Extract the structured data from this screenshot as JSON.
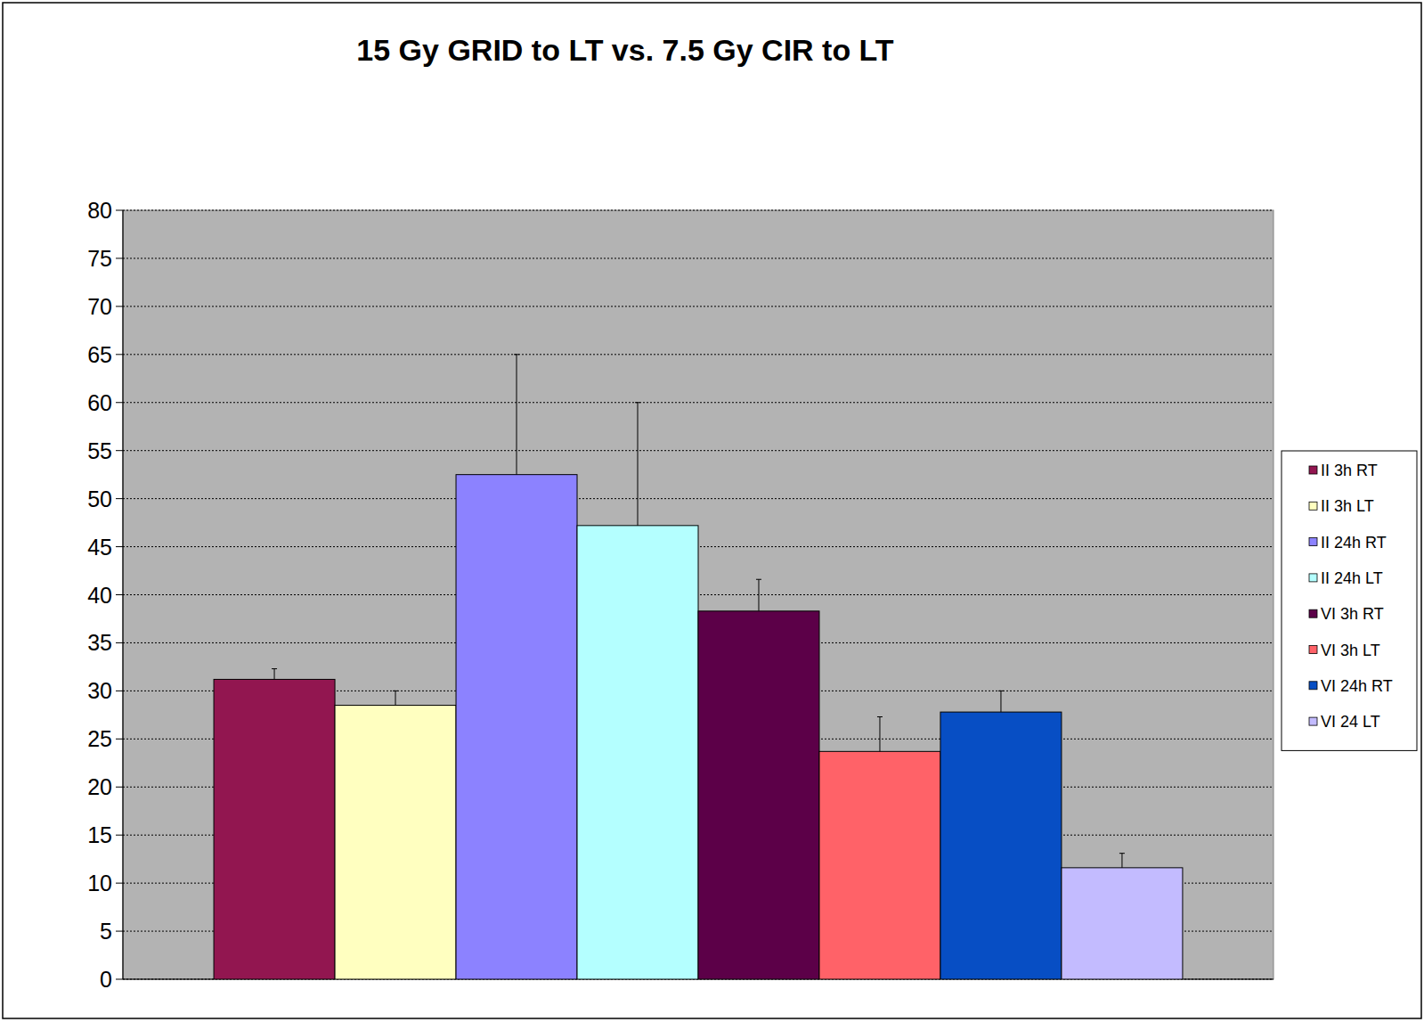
{
  "chart_data": {
    "type": "bar",
    "title": "15 Gy GRID to LT vs. 7.5 Gy CIR to LT",
    "categories": [
      null
    ],
    "series": [
      {
        "name": "II 3h RT",
        "color": "#921650",
        "values": [
          31.2
        ],
        "errors": [
          1.1
        ]
      },
      {
        "name": "II 3h LT",
        "color": "#FFFFC0",
        "values": [
          28.5
        ],
        "errors": [
          1.5
        ]
      },
      {
        "name": "II 24h RT",
        "color": "#8C82FF",
        "values": [
          52.5
        ],
        "errors": [
          12.5
        ]
      },
      {
        "name": "II 24h LT",
        "color": "#B4FFFF",
        "values": [
          47.2
        ],
        "errors": [
          12.8
        ]
      },
      {
        "name": "VI 3h RT",
        "color": "#5C0048",
        "values": [
          38.3
        ],
        "errors": [
          3.3
        ]
      },
      {
        "name": "VI 3h LT",
        "color": "#FF6268",
        "values": [
          23.7
        ],
        "errors": [
          3.6
        ]
      },
      {
        "name": "VI 24h RT",
        "color": "#074EC4",
        "values": [
          27.8
        ],
        "errors": [
          2.2
        ]
      },
      {
        "name": "VI 24 LT",
        "color": "#C3BBFF",
        "values": [
          11.6
        ],
        "errors": [
          1.5
        ]
      }
    ],
    "ylim": [
      0,
      80
    ],
    "yticks": [
      0,
      5,
      10,
      15,
      20,
      25,
      30,
      35,
      40,
      45,
      50,
      55,
      60,
      65,
      70,
      75,
      80
    ],
    "grid": true,
    "legend": "right"
  }
}
